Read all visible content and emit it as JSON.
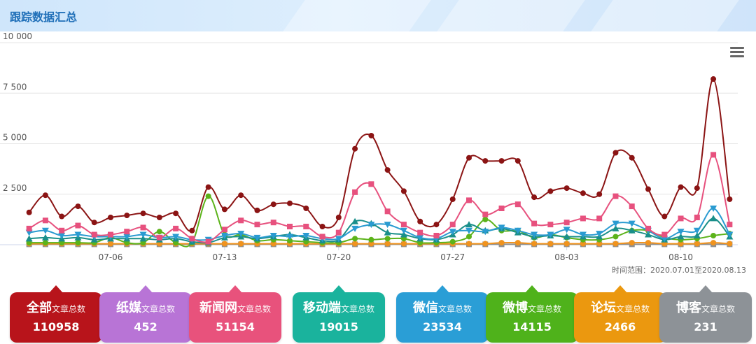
{
  "header": {
    "title": "跟踪数据汇总"
  },
  "range": {
    "label": "时间范围：",
    "start": "2020.07.01",
    "sep": "至",
    "end": "2020.08.13"
  },
  "chart_data": {
    "type": "line",
    "ylim": [
      0,
      10000
    ],
    "yticks": [
      0,
      2500,
      5000,
      7500,
      10000
    ],
    "ytick_labels": [
      "",
      "2 500",
      "5 000",
      "7 500",
      "10 000"
    ],
    "x": [
      "07-01",
      "07-02",
      "07-03",
      "07-04",
      "07-05",
      "07-06",
      "07-07",
      "07-08",
      "07-09",
      "07-10",
      "07-11",
      "07-12",
      "07-13",
      "07-14",
      "07-15",
      "07-16",
      "07-17",
      "07-18",
      "07-19",
      "07-20",
      "07-21",
      "07-22",
      "07-23",
      "07-24",
      "07-25",
      "07-26",
      "07-27",
      "07-28",
      "07-29",
      "07-30",
      "07-31",
      "08-01",
      "08-02",
      "08-03",
      "08-04",
      "08-05",
      "08-06",
      "08-07",
      "08-08",
      "08-09",
      "08-10",
      "08-11",
      "08-12",
      "08-13"
    ],
    "xtick_labels": [
      {
        "index": 5,
        "label": "07-06"
      },
      {
        "index": 12,
        "label": "07-13"
      },
      {
        "index": 19,
        "label": "07-20"
      },
      {
        "index": 26,
        "label": "07-27"
      },
      {
        "index": 33,
        "label": "08-03"
      },
      {
        "index": 40,
        "label": "08-10"
      }
    ],
    "grid": true,
    "series": [
      {
        "color": "#8b1414",
        "marker": "circle",
        "values": [
          1600,
          2450,
          1400,
          1900,
          1100,
          1350,
          1450,
          1550,
          1350,
          1550,
          700,
          2850,
          1750,
          2450,
          1700,
          2000,
          2050,
          1800,
          900,
          1350,
          4750,
          5400,
          3700,
          2650,
          1150,
          1000,
          2250,
          4300,
          4150,
          4150,
          4150,
          2350,
          2650,
          2800,
          2550,
          2500,
          4550,
          4300,
          2750,
          1400,
          2850,
          2800,
          8200,
          2250
        ]
      },
      {
        "color": "#e7517e",
        "marker": "square",
        "values": [
          800,
          1200,
          700,
          950,
          500,
          500,
          650,
          850,
          350,
          800,
          300,
          150,
          750,
          1200,
          1000,
          1100,
          900,
          900,
          400,
          600,
          2600,
          3000,
          1650,
          1000,
          600,
          450,
          1000,
          2200,
          1500,
          1800,
          2000,
          1050,
          1000,
          1100,
          1300,
          1300,
          2400,
          1900,
          800,
          500,
          1300,
          1350,
          4450,
          1000
        ]
      },
      {
        "color": "#2a9bd1",
        "marker": "triangle-down",
        "values": [
          600,
          700,
          450,
          500,
          400,
          400,
          400,
          500,
          350,
          400,
          250,
          250,
          450,
          550,
          350,
          450,
          400,
          450,
          300,
          300,
          800,
          1000,
          1000,
          700,
          350,
          300,
          650,
          700,
          650,
          850,
          700,
          500,
          500,
          750,
          500,
          550,
          1050,
          1050,
          700,
          300,
          650,
          700,
          1800,
          500
        ]
      },
      {
        "color": "#1a8f8a",
        "marker": "triangle",
        "values": [
          300,
          350,
          300,
          350,
          250,
          300,
          300,
          300,
          250,
          300,
          150,
          100,
          350,
          400,
          300,
          400,
          500,
          350,
          200,
          250,
          1150,
          1050,
          600,
          500,
          300,
          250,
          500,
          1000,
          700,
          800,
          600,
          400,
          450,
          400,
          400,
          400,
          800,
          700,
          500,
          250,
          400,
          450,
          1300,
          400
        ]
      },
      {
        "color": "#5cb31a",
        "marker": "circle",
        "values": [
          100,
          100,
          100,
          100,
          100,
          350,
          100,
          100,
          650,
          100,
          100,
          2400,
          500,
          500,
          200,
          250,
          200,
          150,
          100,
          100,
          300,
          250,
          300,
          300,
          100,
          100,
          150,
          400,
          1250,
          700,
          700,
          350,
          500,
          350,
          250,
          250,
          400,
          700,
          700,
          350,
          250,
          300,
          450,
          550
        ]
      },
      {
        "color": "#f0931e",
        "marker": "circle",
        "values": [
          50,
          50,
          50,
          50,
          50,
          50,
          50,
          50,
          50,
          50,
          50,
          50,
          50,
          50,
          50,
          50,
          50,
          50,
          50,
          50,
          50,
          50,
          50,
          50,
          50,
          50,
          50,
          50,
          50,
          100,
          100,
          50,
          50,
          50,
          50,
          50,
          50,
          100,
          100,
          50,
          50,
          50,
          100,
          50
        ]
      },
      {
        "color": "#8f8f8f",
        "marker": "square",
        "values": [
          20,
          20,
          20,
          20,
          20,
          20,
          20,
          20,
          20,
          20,
          20,
          20,
          20,
          20,
          20,
          20,
          20,
          20,
          20,
          20,
          20,
          20,
          20,
          20,
          20,
          20,
          20,
          20,
          20,
          20,
          20,
          20,
          20,
          20,
          20,
          20,
          20,
          20,
          20,
          20,
          20,
          20,
          20,
          20
        ]
      }
    ]
  },
  "cards": [
    {
      "name": "全部",
      "suffix": "文章总数",
      "value": "110958",
      "color": "#b8141b"
    },
    {
      "name": "纸媒",
      "suffix": "文章总数",
      "value": "452",
      "color": "#b874d6"
    },
    {
      "name": "新闻网",
      "suffix": "文章总数",
      "value": "51154",
      "color": "#e8527c"
    },
    {
      "name": "移动端",
      "suffix": "文章总数",
      "value": "19015",
      "color": "#1ab39d"
    },
    {
      "name": "微信",
      "suffix": "文章总数",
      "value": "23534",
      "color": "#2a9ed6"
    },
    {
      "name": "微博",
      "suffix": "文章总数",
      "value": "14115",
      "color": "#4fb21b"
    },
    {
      "name": "论坛",
      "suffix": "文章总数",
      "value": "2466",
      "color": "#eb980f"
    },
    {
      "name": "博客",
      "suffix": "文章总数",
      "value": "231",
      "color": "#8d9297"
    }
  ]
}
